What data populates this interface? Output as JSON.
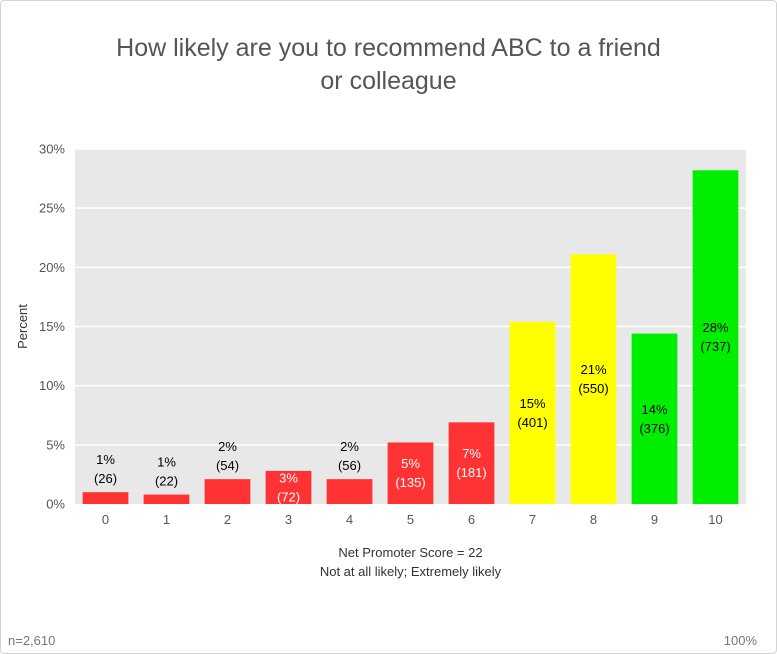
{
  "chart_data": {
    "type": "bar",
    "title": "How likely are you to recommend ABC to a friend\nor colleague",
    "ylabel": "Percent",
    "xlabel": "Net Promoter Score = 22",
    "xlabel_sub": "Not at all likely; Extremely likely",
    "ylim": [
      0,
      30
    ],
    "yticks": [
      "0%",
      "5%",
      "10%",
      "15%",
      "20%",
      "25%",
      "30%"
    ],
    "grid": true,
    "categories": [
      "0",
      "1",
      "2",
      "3",
      "4",
      "5",
      "6",
      "7",
      "8",
      "9",
      "10"
    ],
    "values": [
      1.0,
      0.8,
      2.1,
      2.8,
      2.1,
      5.2,
      6.9,
      15.4,
      21.1,
      14.4,
      28.2
    ],
    "labels_pct": [
      "1%",
      "1%",
      "2%",
      "3%",
      "2%",
      "5%",
      "7%",
      "15%",
      "21%",
      "14%",
      "28%"
    ],
    "labels_n": [
      "(26)",
      "(22)",
      "(54)",
      "(72)",
      "(56)",
      "(135)",
      "(181)",
      "(401)",
      "(550)",
      "(376)",
      "(737)"
    ],
    "colors": [
      "#ff3333",
      "#ff3333",
      "#ff3333",
      "#ff3333",
      "#ff3333",
      "#ff3333",
      "#ff3333",
      "#ffff00",
      "#ffff00",
      "#00ee00",
      "#00ee00"
    ]
  },
  "footer": {
    "sample": "n=2,610",
    "total": "100%"
  }
}
